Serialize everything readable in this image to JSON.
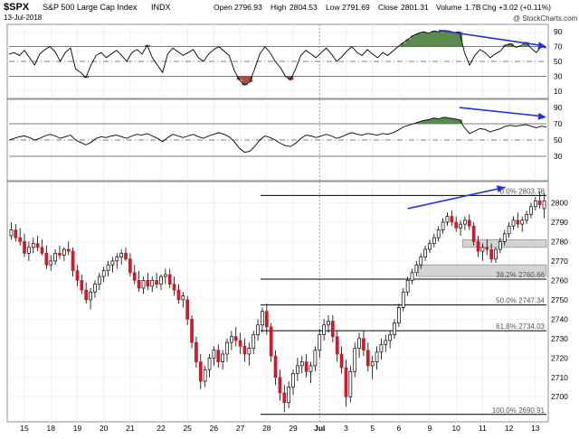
{
  "header": {
    "symbol": "$SPX",
    "name": "S&P 500 Large Cap Index",
    "exchange": "INDX",
    "date": "13-Jul-2018",
    "watermark": "@ StockCharts.com",
    "quote": {
      "open_label": "Open",
      "open": "2796.93",
      "high_label": "High",
      "high": "2804.53",
      "low_label": "Low",
      "low": "2791.69",
      "close_label": "Close",
      "close": "2801.31",
      "volume_label": "Volume",
      "volume": "1.7B",
      "chg_label": "Chg",
      "chg": "+3.02 (+0.11%)"
    }
  },
  "colors": {
    "up_candle": "#ffffff",
    "down_candle": "#cc1b2b",
    "overbought_fill": "#5a8a4e",
    "oversold_fill": "#a0524a",
    "trend_arrow": "#2233dd"
  },
  "chart_data": [
    {
      "type": "line",
      "panel": "indicator-1",
      "y_ticks": [
        10,
        30,
        50,
        70,
        90
      ],
      "reference_lines": [
        30,
        50,
        70
      ],
      "values": [
        60,
        62,
        58,
        65,
        55,
        45,
        60,
        66,
        70,
        63,
        50,
        62,
        68,
        40,
        35,
        28,
        45,
        58,
        62,
        55,
        60,
        65,
        58,
        50,
        62,
        66,
        60,
        72,
        55,
        45,
        35,
        60,
        68,
        63,
        58,
        62,
        66,
        55,
        50,
        60,
        66,
        70,
        64,
        58,
        38,
        25,
        18,
        22,
        40,
        60,
        70,
        62,
        50,
        42,
        30,
        25,
        40,
        58,
        65,
        60,
        55,
        62,
        68,
        60,
        50,
        56,
        64,
        70,
        62,
        58,
        66,
        60,
        55,
        62,
        58,
        64,
        70,
        75,
        80,
        85,
        88,
        90,
        88,
        91,
        90,
        92,
        91,
        89,
        90,
        62,
        45,
        58,
        66,
        62,
        55,
        60,
        64,
        72,
        74,
        69,
        71,
        76,
        68,
        62,
        70,
        68
      ],
      "trend_arrow": {
        "from_index": 84,
        "to_index": 105,
        "from_value": 92,
        "to_value": 70
      }
    },
    {
      "type": "line",
      "panel": "indicator-2",
      "y_ticks": [
        30,
        50,
        70,
        90
      ],
      "reference_lines": [
        30,
        50,
        70
      ],
      "values": [
        50,
        52,
        54,
        55,
        53,
        50,
        52,
        55,
        57,
        55,
        52,
        54,
        56,
        50,
        47,
        44,
        47,
        52,
        54,
        53,
        55,
        56,
        54,
        52,
        55,
        57,
        56,
        58,
        55,
        52,
        48,
        53,
        57,
        55,
        53,
        55,
        57,
        54,
        52,
        55,
        57,
        59,
        57,
        54,
        48,
        40,
        35,
        36,
        42,
        50,
        55,
        53,
        50,
        46,
        43,
        42,
        46,
        52,
        56,
        55,
        53,
        55,
        57,
        55,
        52,
        54,
        57,
        59,
        57,
        56,
        58,
        57,
        56,
        58,
        57,
        59,
        62,
        66,
        68,
        70,
        72,
        74,
        75,
        77,
        76,
        78,
        77,
        76,
        75,
        65,
        58,
        61,
        64,
        63,
        60,
        62,
        64,
        67,
        68,
        67,
        68,
        69,
        67,
        65,
        67,
        66
      ],
      "trend_arrow": {
        "from_index": 88,
        "to_index": 105,
        "from_value": 90,
        "to_value": 78
      }
    },
    {
      "type": "candlestick",
      "panel": "price",
      "y_ticks": [
        2700,
        2710,
        2720,
        2730,
        2740,
        2750,
        2760,
        2770,
        2780,
        2790,
        2800
      ],
      "ylim": [
        2688,
        2810
      ],
      "x_labels": [
        "15",
        "18",
        "19",
        "20",
        "21",
        "22",
        "25",
        "26",
        "27",
        "28",
        "29",
        "Jul",
        "3",
        "5",
        "6",
        "9",
        "10",
        "11",
        "12",
        "13"
      ],
      "candles": [
        [
          2783,
          2790,
          2781,
          2786
        ],
        [
          2786,
          2789,
          2780,
          2782
        ],
        [
          2782,
          2787,
          2778,
          2780
        ],
        [
          2780,
          2784,
          2772,
          2774
        ],
        [
          2774,
          2780,
          2770,
          2777
        ],
        [
          2777,
          2782,
          2774,
          2779
        ],
        [
          2779,
          2783,
          2775,
          2777
        ],
        [
          2777,
          2781,
          2773,
          2774
        ],
        [
          2774,
          2778,
          2766,
          2768
        ],
        [
          2768,
          2773,
          2765,
          2770
        ],
        [
          2770,
          2776,
          2768,
          2774
        ],
        [
          2774,
          2778,
          2771,
          2773
        ],
        [
          2773,
          2777,
          2770,
          2776
        ],
        [
          2776,
          2780,
          2773,
          2775
        ],
        [
          2775,
          2777,
          2762,
          2765
        ],
        [
          2765,
          2768,
          2757,
          2760
        ],
        [
          2760,
          2763,
          2753,
          2755
        ],
        [
          2755,
          2759,
          2748,
          2750
        ],
        [
          2750,
          2756,
          2745,
          2754
        ],
        [
          2754,
          2760,
          2751,
          2758
        ],
        [
          2758,
          2764,
          2755,
          2762
        ],
        [
          2762,
          2767,
          2759,
          2765
        ],
        [
          2765,
          2770,
          2762,
          2768
        ],
        [
          2768,
          2772,
          2764,
          2770
        ],
        [
          2770,
          2774,
          2766,
          2772
        ],
        [
          2772,
          2776,
          2768,
          2774
        ],
        [
          2774,
          2777,
          2770,
          2771
        ],
        [
          2771,
          2774,
          2762,
          2764
        ],
        [
          2764,
          2768,
          2758,
          2760
        ],
        [
          2760,
          2765,
          2754,
          2756
        ],
        [
          2756,
          2762,
          2753,
          2760
        ],
        [
          2760,
          2764,
          2755,
          2757
        ],
        [
          2757,
          2762,
          2754,
          2760
        ],
        [
          2760,
          2764,
          2756,
          2758
        ],
        [
          2758,
          2763,
          2755,
          2762
        ],
        [
          2762,
          2766,
          2758,
          2763
        ],
        [
          2763,
          2766,
          2756,
          2758
        ],
        [
          2758,
          2762,
          2752,
          2755
        ],
        [
          2755,
          2758,
          2748,
          2750
        ],
        [
          2750,
          2754,
          2746,
          2752
        ],
        [
          2750,
          2752,
          2737,
          2740
        ],
        [
          2740,
          2742,
          2725,
          2728
        ],
        [
          2728,
          2731,
          2715,
          2718
        ],
        [
          2718,
          2722,
          2704,
          2708
        ],
        [
          2708,
          2716,
          2705,
          2714
        ],
        [
          2714,
          2722,
          2710,
          2720
        ],
        [
          2720,
          2726,
          2716,
          2724
        ],
        [
          2724,
          2727,
          2715,
          2718
        ],
        [
          2718,
          2724,
          2714,
          2722
        ],
        [
          2722,
          2730,
          2718,
          2728
        ],
        [
          2728,
          2734,
          2724,
          2731
        ],
        [
          2731,
          2736,
          2726,
          2729
        ],
        [
          2729,
          2733,
          2722,
          2726
        ],
        [
          2726,
          2730,
          2718,
          2722
        ],
        [
          2722,
          2728,
          2716,
          2725
        ],
        [
          2725,
          2734,
          2722,
          2732
        ],
        [
          2732,
          2740,
          2729,
          2737
        ],
        [
          2737,
          2746,
          2733,
          2744
        ],
        [
          2744,
          2748,
          2732,
          2736
        ],
        [
          2736,
          2738,
          2718,
          2721
        ],
        [
          2721,
          2724,
          2706,
          2710
        ],
        [
          2710,
          2714,
          2698,
          2702
        ],
        [
          2702,
          2706,
          2692,
          2697
        ],
        [
          2697,
          2708,
          2694,
          2705
        ],
        [
          2705,
          2714,
          2701,
          2712
        ],
        [
          2712,
          2720,
          2708,
          2716
        ],
        [
          2716,
          2721,
          2712,
          2718
        ],
        [
          2718,
          2722,
          2710,
          2713
        ],
        [
          2713,
          2718,
          2707,
          2716
        ],
        [
          2716,
          2726,
          2713,
          2724
        ],
        [
          2724,
          2735,
          2720,
          2732
        ],
        [
          2732,
          2740,
          2729,
          2737
        ],
        [
          2737,
          2742,
          2733,
          2739
        ],
        [
          2739,
          2742,
          2728,
          2731
        ],
        [
          2731,
          2734,
          2718,
          2722
        ],
        [
          2722,
          2726,
          2712,
          2715
        ],
        [
          2715,
          2719,
          2695,
          2700
        ],
        [
          2700,
          2716,
          2697,
          2713
        ],
        [
          2713,
          2728,
          2710,
          2725
        ],
        [
          2725,
          2733,
          2720,
          2730
        ],
        [
          2730,
          2734,
          2721,
          2724
        ],
        [
          2724,
          2728,
          2713,
          2716
        ],
        [
          2716,
          2721,
          2709,
          2718
        ],
        [
          2718,
          2726,
          2714,
          2723
        ],
        [
          2723,
          2730,
          2719,
          2727
        ],
        [
          2727,
          2732,
          2723,
          2729
        ],
        [
          2729,
          2734,
          2725,
          2732
        ],
        [
          2732,
          2740,
          2730,
          2738
        ],
        [
          2738,
          2748,
          2736,
          2746
        ],
        [
          2746,
          2756,
          2744,
          2754
        ],
        [
          2754,
          2762,
          2752,
          2760
        ],
        [
          2760,
          2766,
          2758,
          2764
        ],
        [
          2764,
          2770,
          2762,
          2768
        ],
        [
          2768,
          2774,
          2766,
          2772
        ],
        [
          2772,
          2778,
          2770,
          2776
        ],
        [
          2776,
          2781,
          2774,
          2779
        ],
        [
          2779,
          2784,
          2777,
          2782
        ],
        [
          2782,
          2788,
          2780,
          2786
        ],
        [
          2786,
          2792,
          2784,
          2790
        ],
        [
          2790,
          2795,
          2788,
          2793
        ],
        [
          2793,
          2796,
          2788,
          2790
        ],
        [
          2790,
          2793,
          2785,
          2787
        ],
        [
          2787,
          2791,
          2783,
          2789
        ],
        [
          2789,
          2793,
          2786,
          2791
        ],
        [
          2791,
          2794,
          2786,
          2788
        ],
        [
          2788,
          2790,
          2778,
          2780
        ],
        [
          2780,
          2783,
          2772,
          2775
        ],
        [
          2775,
          2779,
          2770,
          2777
        ],
        [
          2777,
          2781,
          2773,
          2776
        ],
        [
          2776,
          2779,
          2769,
          2771
        ],
        [
          2771,
          2777,
          2769,
          2776
        ],
        [
          2776,
          2782,
          2774,
          2780
        ],
        [
          2780,
          2786,
          2778,
          2784
        ],
        [
          2784,
          2790,
          2782,
          2788
        ],
        [
          2788,
          2793,
          2786,
          2791
        ],
        [
          2791,
          2795,
          2787,
          2789
        ],
        [
          2789,
          2793,
          2785,
          2791
        ],
        [
          2791,
          2796,
          2789,
          2794
        ],
        [
          2794,
          2800,
          2792,
          2798
        ],
        [
          2798,
          2803,
          2796,
          2801
        ],
        [
          2801,
          2806,
          2797,
          2799
        ],
        [
          2797,
          2805,
          2792,
          2801
        ]
      ],
      "horizontal_lines": [
        {
          "label": "0.0%",
          "value": "2803.78",
          "y": 2803.78
        },
        {
          "label": "38.2%",
          "value": "2760.66",
          "y": 2760.66
        },
        {
          "label": "50.0%",
          "value": "2747.34",
          "y": 2747.34
        },
        {
          "label": "61.8%",
          "value": "2734.03",
          "y": 2734.03
        },
        {
          "label": "100.0%",
          "value": "2690.91",
          "y": 2690.91
        }
      ],
      "zones": [
        {
          "from": 2777,
          "to": 2781,
          "start_index": 103
        },
        {
          "from": 2762,
          "to": 2768,
          "start_index": 93
        }
      ],
      "trend_arrow": {
        "from_index": 90,
        "to_index": 113,
        "from_value": 2797,
        "to_value": 2808
      }
    }
  ]
}
